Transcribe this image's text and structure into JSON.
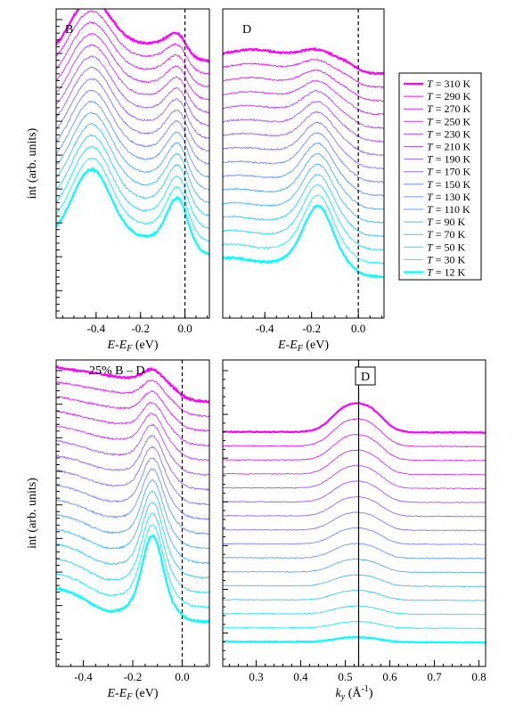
{
  "colors": {
    "hot": "#ff00ff",
    "cold": "#00ffff",
    "mid": "#8080ff"
  },
  "legend": {
    "entries": [
      {
        "T": "310 K"
      },
      {
        "T": "290 K"
      },
      {
        "T": "270 K"
      },
      {
        "T": "250 K"
      },
      {
        "T": "230 K"
      },
      {
        "T": "210 K"
      },
      {
        "T": "190 K"
      },
      {
        "T": "170 K"
      },
      {
        "T": "150 K"
      },
      {
        "T": "130 K"
      },
      {
        "T": "110 K"
      },
      {
        "T": "90 K"
      },
      {
        "T": "70 K"
      },
      {
        "T": "50 K"
      },
      {
        "T": "30 K"
      },
      {
        "T": "12 K"
      }
    ],
    "prefix": "T",
    "equals": " = "
  },
  "chart_data": [
    {
      "type": "line",
      "panel_label": "B",
      "xlabel": "E-E",
      "xlabel_sub": "F",
      "xlabel_unit": " (eV)",
      "ylabel": "int (arb. units)",
      "xlim": [
        -0.58,
        0.11
      ],
      "x_ticks": [
        "-0.4",
        "-0.2",
        "0.0"
      ],
      "x_tick_values": [
        -0.4,
        -0.2,
        0.0
      ],
      "reference_line": {
        "x": 0.0,
        "style": "dashed"
      },
      "series_temperatures_K": [
        310,
        290,
        270,
        250,
        230,
        210,
        190,
        170,
        150,
        130,
        110,
        90,
        70,
        50,
        30,
        12
      ],
      "features": {
        "peak1_x": -0.42,
        "peak2_x": -0.03
      }
    },
    {
      "type": "line",
      "panel_label": "D",
      "xlabel": "E-E",
      "xlabel_sub": "F",
      "xlabel_unit": " (eV)",
      "xlim": [
        -0.58,
        0.11
      ],
      "x_ticks": [
        "-0.4",
        "-0.2",
        "0.0"
      ],
      "x_tick_values": [
        -0.4,
        -0.2,
        0.0
      ],
      "reference_line": {
        "x": 0.0,
        "style": "dashed"
      },
      "series_temperatures_K": [
        310,
        290,
        270,
        250,
        230,
        210,
        190,
        170,
        150,
        130,
        110,
        90,
        70,
        50,
        30,
        12
      ],
      "features": {
        "peak_x": -0.17
      }
    },
    {
      "type": "line",
      "panel_label": "25% B – D",
      "xlabel": "E-E",
      "xlabel_sub": "F",
      "xlabel_unit": " (eV)",
      "ylabel": "int (arb. units)",
      "xlim": [
        -0.51,
        0.11
      ],
      "x_ticks": [
        "-0.4",
        "-0.2",
        "0.0"
      ],
      "x_tick_values": [
        -0.4,
        -0.2,
        0.0
      ],
      "reference_line": {
        "x": 0.0,
        "style": "dashed"
      },
      "series_temperatures_K": [
        310,
        290,
        270,
        250,
        230,
        210,
        190,
        170,
        150,
        130,
        110,
        90,
        70,
        50,
        30,
        12
      ],
      "features": {
        "peak_x": -0.12
      }
    },
    {
      "type": "line",
      "panel_label": "D",
      "xlabel": "k",
      "xlabel_sub": "y",
      "xlabel_unit": " (Å",
      "xlabel_sup": "-1",
      "xlabel_close": ")",
      "xlim": [
        0.225,
        0.815
      ],
      "x_ticks": [
        "0.3",
        "0.4",
        "0.5",
        "0.6",
        "0.7",
        "0.8"
      ],
      "x_tick_values": [
        0.3,
        0.4,
        0.5,
        0.6,
        0.7,
        0.8
      ],
      "reference_line": {
        "x": 0.53,
        "style": "solid"
      },
      "series_temperatures_K": [
        310,
        290,
        270,
        250,
        230,
        210,
        190,
        170,
        150,
        130,
        110,
        90,
        70,
        50,
        30,
        12
      ],
      "features": {
        "peak1_x": 0.505,
        "peak2_x": 0.555
      }
    }
  ]
}
